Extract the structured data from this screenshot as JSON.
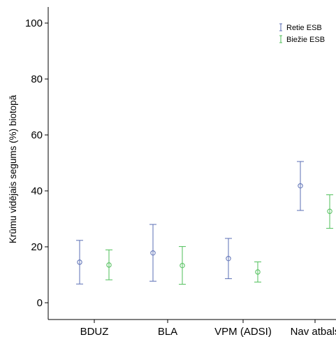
{
  "chart_data": {
    "type": "errorbar",
    "title": "",
    "xlabel": "",
    "ylabel": "Krūmu vidējais segums (%) biotopā",
    "ylim": [
      -3,
      106
    ],
    "yticks": [
      0,
      20,
      40,
      60,
      80,
      100
    ],
    "ytick_labels": [
      "0",
      "20",
      "40",
      "60",
      "80",
      "100"
    ],
    "categories": [
      "BDUZ",
      "BLA",
      "VPM (ADSI)",
      "Nav atbalsta"
    ],
    "category_labels": [
      "BDUZ",
      "BLA",
      "VPM (ADSI)",
      "Nav atbals"
    ],
    "grid": false,
    "legend_position": "top-right",
    "series": [
      {
        "name": "Retie ESB",
        "color": "#5b6fb5",
        "mean": [
          14.5,
          17.8,
          15.8,
          41.8
        ],
        "lower": [
          6.7,
          7.7,
          8.6,
          33.0
        ],
        "upper": [
          22.3,
          28.0,
          23.0,
          50.5
        ]
      },
      {
        "name": "Biežie ESB",
        "color": "#4fbf5a",
        "mean": [
          13.5,
          13.3,
          11.0,
          32.7
        ],
        "lower": [
          8.2,
          6.6,
          7.4,
          26.6
        ],
        "upper": [
          18.9,
          20.1,
          14.6,
          38.6
        ]
      }
    ]
  }
}
